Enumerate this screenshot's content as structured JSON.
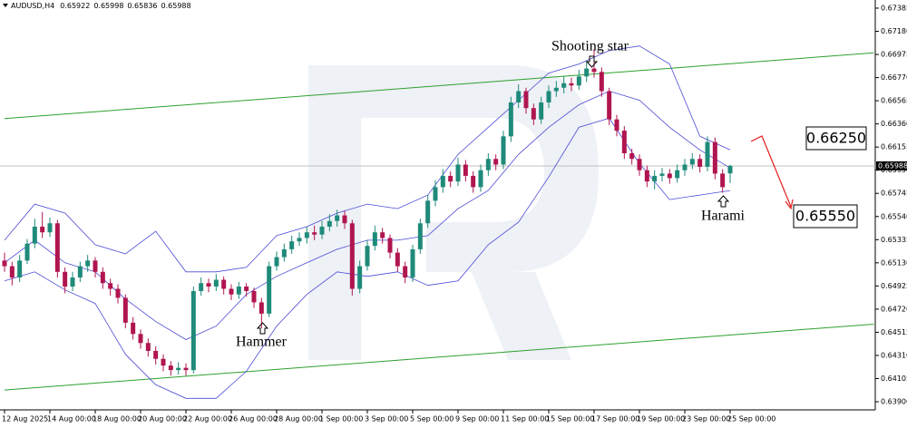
{
  "chart_data": {
    "type": "candlestick",
    "title": "AUDUSD,H4",
    "categories": [
      "12 Aug 2025",
      null,
      null,
      null,
      null,
      null,
      "14 Aug 00:00",
      null,
      null,
      null,
      null,
      null,
      "18 Aug 00:00",
      null,
      null,
      null,
      null,
      null,
      "20 Aug 00:00",
      null,
      null,
      null,
      null,
      null,
      "22 Aug 00:00",
      null,
      null,
      null,
      null,
      null,
      "26 Aug 00:00",
      null,
      null,
      null,
      null,
      null,
      "28 Aug 00:00",
      null,
      null,
      null,
      null,
      null,
      "1 Sep 00:00",
      null,
      null,
      null,
      null,
      null,
      "3 Sep 00:00",
      null,
      null,
      null,
      null,
      null,
      "5 Sep 00:00",
      null,
      null,
      null,
      null,
      null,
      "9 Sep 00:00",
      null,
      null,
      null,
      null,
      null,
      "11 Sep 00:00",
      null,
      null,
      null,
      null,
      null,
      "15 Sep 00:00",
      null,
      null,
      null,
      null,
      null,
      "17 Sep 00:00",
      null,
      null,
      null,
      null,
      null,
      "19 Sep 00:00",
      null,
      null,
      null,
      null,
      null,
      "23 Sep 00:00",
      null,
      null,
      null,
      null,
      null,
      "25 Sep 00:00"
    ],
    "open": [
      0.6515,
      0.651,
      0.65,
      0.6515,
      0.653,
      0.6545,
      0.654,
      0.6548,
      0.6505,
      0.6492,
      0.65,
      0.651,
      0.6515,
      0.6505,
      0.6495,
      0.649,
      0.6482,
      0.646,
      0.645,
      0.6442,
      0.6435,
      0.6428,
      0.6422,
      0.6418,
      0.642,
      0.6418,
      0.6488,
      0.6495,
      0.6492,
      0.6498,
      0.649,
      0.6485,
      0.6492,
      0.6488,
      0.6478,
      0.6468,
      0.651,
      0.6518,
      0.6525,
      0.6532,
      0.6535,
      0.654,
      0.6538,
      0.6545,
      0.655,
      0.6555,
      0.6548,
      0.649,
      0.651,
      0.6528,
      0.654,
      0.6535,
      0.6522,
      0.651,
      0.65,
      0.6525,
      0.6548,
      0.6568,
      0.658,
      0.659,
      0.6585,
      0.66,
      0.659,
      0.658,
      0.6595,
      0.6605,
      0.66,
      0.6625,
      0.6655,
      0.6665,
      0.665,
      0.664,
      0.6655,
      0.6665,
      0.6668,
      0.6672,
      0.667,
      0.6678,
      0.6685,
      0.6682,
      0.6665,
      0.664,
      0.663,
      0.661,
      0.6605,
      0.6595,
      0.6585,
      0.659,
      0.6592,
      0.6588,
      0.6595,
      0.66,
      0.6605,
      0.6598,
      0.662,
      0.6592,
      0.65922
    ],
    "high": [
      0.6522,
      0.6514,
      0.652,
      0.6534,
      0.6552,
      0.6558,
      0.6553,
      0.6551,
      0.6509,
      0.6505,
      0.6514,
      0.652,
      0.6518,
      0.6509,
      0.6499,
      0.6494,
      0.6485,
      0.6465,
      0.6454,
      0.6446,
      0.6439,
      0.6432,
      0.6426,
      0.6425,
      0.6424,
      0.6492,
      0.65,
      0.6499,
      0.6503,
      0.6501,
      0.6494,
      0.6496,
      0.6495,
      0.6491,
      0.6482,
      0.6514,
      0.6523,
      0.653,
      0.6537,
      0.654,
      0.6545,
      0.6546,
      0.655,
      0.6556,
      0.656,
      0.6559,
      0.6551,
      0.6515,
      0.6533,
      0.6546,
      0.6544,
      0.6538,
      0.6526,
      0.6514,
      0.6529,
      0.6552,
      0.6573,
      0.6586,
      0.6596,
      0.6594,
      0.6606,
      0.6604,
      0.6594,
      0.66,
      0.661,
      0.6609,
      0.663,
      0.666,
      0.6671,
      0.6668,
      0.6654,
      0.666,
      0.667,
      0.6674,
      0.6678,
      0.6677,
      0.6684,
      0.6692,
      0.6702,
      0.6686,
      0.6668,
      0.6644,
      0.6634,
      0.6614,
      0.6609,
      0.6599,
      0.6595,
      0.6597,
      0.6596,
      0.66,
      0.6605,
      0.661,
      0.6609,
      0.6625,
      0.6624,
      0.6596,
      0.65998
    ],
    "low": [
      0.6505,
      0.6493,
      0.6496,
      0.6512,
      0.6526,
      0.6535,
      0.6536,
      0.65,
      0.6486,
      0.6488,
      0.6496,
      0.6505,
      0.65,
      0.649,
      0.6484,
      0.6477,
      0.6455,
      0.6445,
      0.6437,
      0.643,
      0.6423,
      0.6417,
      0.6413,
      0.6414,
      0.6413,
      0.6415,
      0.6484,
      0.6487,
      0.6488,
      0.6485,
      0.648,
      0.6481,
      0.6483,
      0.6473,
      0.6455,
      0.6465,
      0.6506,
      0.6514,
      0.6521,
      0.6528,
      0.653,
      0.6533,
      0.6534,
      0.6541,
      0.6545,
      0.6543,
      0.6484,
      0.6486,
      0.6506,
      0.6524,
      0.653,
      0.6517,
      0.6505,
      0.6495,
      0.6496,
      0.6521,
      0.6544,
      0.6563,
      0.6575,
      0.658,
      0.6581,
      0.6585,
      0.6575,
      0.6576,
      0.659,
      0.6595,
      0.6596,
      0.662,
      0.665,
      0.6645,
      0.6635,
      0.6636,
      0.665,
      0.666,
      0.6663,
      0.6665,
      0.6666,
      0.6673,
      0.6677,
      0.666,
      0.6635,
      0.6625,
      0.6605,
      0.66,
      0.659,
      0.658,
      0.6578,
      0.6585,
      0.6583,
      0.6584,
      0.659,
      0.6596,
      0.6593,
      0.6594,
      0.6587,
      0.6575,
      0.65836
    ],
    "close": [
      0.651,
      0.65,
      0.6515,
      0.653,
      0.6545,
      0.654,
      0.6548,
      0.6505,
      0.6492,
      0.65,
      0.651,
      0.6515,
      0.6505,
      0.6495,
      0.649,
      0.6482,
      0.646,
      0.645,
      0.6442,
      0.6435,
      0.6428,
      0.6422,
      0.6418,
      0.642,
      0.6418,
      0.6488,
      0.6495,
      0.6492,
      0.6498,
      0.649,
      0.6485,
      0.6492,
      0.6488,
      0.6478,
      0.6468,
      0.651,
      0.6518,
      0.6525,
      0.6532,
      0.6535,
      0.654,
      0.6538,
      0.6545,
      0.655,
      0.6555,
      0.6548,
      0.649,
      0.651,
      0.6528,
      0.654,
      0.6535,
      0.6522,
      0.651,
      0.65,
      0.6525,
      0.6548,
      0.6568,
      0.658,
      0.659,
      0.6585,
      0.66,
      0.659,
      0.658,
      0.6595,
      0.6605,
      0.66,
      0.6625,
      0.6655,
      0.6665,
      0.665,
      0.664,
      0.6655,
      0.6665,
      0.6668,
      0.6672,
      0.667,
      0.6678,
      0.6685,
      0.6682,
      0.6665,
      0.664,
      0.663,
      0.661,
      0.6605,
      0.6595,
      0.6585,
      0.659,
      0.6592,
      0.6588,
      0.6595,
      0.66,
      0.6605,
      0.6598,
      0.662,
      0.6592,
      0.658,
      0.65988
    ],
    "colors": {
      "up": "#1f8a7a",
      "down": "#b01550"
    },
    "bands": {
      "color": "#4b4bd6",
      "x": [
        0,
        4,
        8,
        12,
        16,
        20,
        24,
        28,
        32,
        36,
        40,
        44,
        48,
        52,
        56,
        60,
        64,
        68,
        72,
        76,
        80,
        84,
        88,
        92,
        96
      ],
      "upper": [
        0.6533,
        0.6565,
        0.6557,
        0.6529,
        0.6521,
        0.6541,
        0.6505,
        0.6505,
        0.6509,
        0.6537,
        0.6545,
        0.6557,
        0.6565,
        0.6561,
        0.6573,
        0.6609,
        0.6633,
        0.6657,
        0.6681,
        0.6689,
        0.6701,
        0.6705,
        0.6689,
        0.6625,
        0.6613
      ],
      "middle": [
        0.6513,
        0.6533,
        0.6513,
        0.6505,
        0.6481,
        0.6461,
        0.6445,
        0.6457,
        0.6485,
        0.6501,
        0.6513,
        0.6525,
        0.6533,
        0.6533,
        0.6537,
        0.6561,
        0.6577,
        0.6609,
        0.6633,
        0.6653,
        0.6665,
        0.6657,
        0.6633,
        0.6613,
        0.6597
      ],
      "lower": [
        0.6497,
        0.6505,
        0.6489,
        0.6477,
        0.6432,
        0.6405,
        0.6393,
        0.6393,
        0.6417,
        0.6457,
        0.6485,
        0.6505,
        0.6501,
        0.6505,
        0.6493,
        0.6497,
        0.6529,
        0.6549,
        0.6589,
        0.6633,
        0.6641,
        0.6601,
        0.6569,
        0.6573,
        0.6577
      ]
    },
    "trendline_color": "#2ca02c",
    "trendlines": [
      {
        "x": [
          0,
          115
        ],
        "values": [
          0.66407,
          0.66989
        ]
      },
      {
        "x": [
          0,
          115
        ],
        "values": [
          0.64004,
          0.64587
        ]
      }
    ],
    "annotations": [
      "Shooting star",
      "Hammer",
      "Harami"
    ],
    "price_levels": [
      "0.66250",
      "0.65550"
    ],
    "ylim": [
      0.63828,
      0.67441
    ],
    "yticks": [
      0.67385,
      {
        "value": 0.6718,
        "label": "0.67180"
      },
      0.66975,
      {
        "value": 0.6677,
        "label": "0.66770"
      },
      0.66565,
      {
        "value": 0.6636,
        "label": "0.66360"
      },
      0.66155,
      {
        "value": 0.6595,
        "label": "0.65950"
      },
      0.65745,
      {
        "value": 0.6554,
        "label": "0.65540"
      },
      0.65335,
      {
        "value": 0.6513,
        "label": "0.65130"
      },
      0.64925,
      {
        "value": 0.6472,
        "label": "0.64720"
      },
      0.64515,
      {
        "value": 0.6431,
        "label": "0.64310"
      },
      0.64105,
      {
        "value": 0.639,
        "label": "0.63900"
      }
    ],
    "grid": false
  }
}
